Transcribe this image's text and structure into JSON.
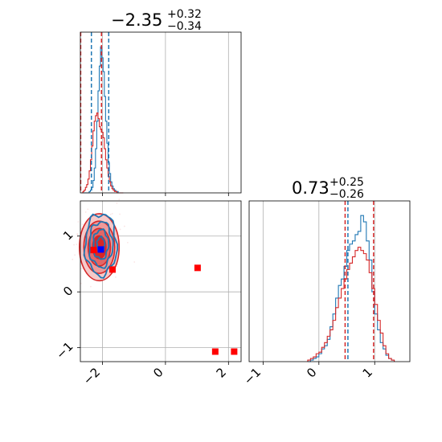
{
  "chart_data": [
    {
      "type": "histogram",
      "panel": "top-left",
      "title": {
        "main": "−2.35",
        "plus": "+0.32",
        "minus": "−0.34"
      },
      "xlim": [
        -2.7,
        2.4
      ],
      "xticks": [
        -2,
        0,
        2
      ],
      "xtick_labels": [
        "−2",
        "0",
        "2"
      ],
      "grid": true,
      "series": [
        {
          "color": "#1f77b4",
          "bin_edges": [
            -2.66,
            -2.62,
            -2.58,
            -2.54,
            -2.5,
            -2.46,
            -2.42,
            -2.38,
            -2.34,
            -2.3,
            -2.26,
            -2.22,
            -2.18,
            -2.14,
            -2.1,
            -2.06,
            -2.02,
            -1.98,
            -1.94,
            -1.9,
            -1.86,
            -1.82,
            -1.78,
            -1.74,
            -1.7,
            -1.66,
            -1.62,
            -1.58,
            -1.54,
            -1.5,
            -1.46,
            -1.42,
            -1.38,
            -1.34
          ],
          "counts": [
            0,
            0,
            0,
            0,
            0,
            0,
            1,
            2,
            4,
            9,
            18,
            32,
            52,
            74,
            92,
            106,
            98,
            88,
            70,
            52,
            36,
            22,
            14,
            8,
            5,
            3,
            2,
            1,
            1,
            0,
            0,
            0,
            0
          ]
        },
        {
          "color": "#d62728",
          "bin_edges": [
            -2.66,
            -2.62,
            -2.58,
            -2.54,
            -2.5,
            -2.46,
            -2.42,
            -2.38,
            -2.34,
            -2.3,
            -2.26,
            -2.22,
            -2.18,
            -2.14,
            -2.1,
            -2.06,
            -2.02,
            -1.98,
            -1.94,
            -1.9,
            -1.86,
            -1.82,
            -1.78,
            -1.74,
            -1.7,
            -1.66,
            -1.62,
            -1.58,
            -1.54,
            -1.5,
            -1.46,
            -1.42,
            -1.38,
            -1.34
          ],
          "counts": [
            0,
            1,
            2,
            4,
            6,
            10,
            16,
            24,
            34,
            45,
            52,
            56,
            58,
            54,
            48,
            46,
            44,
            40,
            32,
            24,
            18,
            12,
            8,
            5,
            3,
            2,
            1,
            1,
            0,
            0,
            0,
            0,
            0
          ]
        }
      ],
      "vlines": [
        {
          "x": -2.69,
          "color": "#d62728",
          "style": "dashed"
        },
        {
          "x": -2.35,
          "color": "#1f77b4",
          "style": "dashed"
        },
        {
          "x": -2.03,
          "color": "#d62728",
          "style": "dashed"
        },
        {
          "x": -1.8,
          "color": "#1f77b4",
          "style": "dashed"
        }
      ]
    },
    {
      "type": "scatter",
      "panel": "bottom-left",
      "xlim": [
        -2.7,
        2.4
      ],
      "ylim": [
        -1.25,
        1.63
      ],
      "xticks": [
        -2,
        0,
        2
      ],
      "xtick_labels": [
        "−2",
        "0",
        "2"
      ],
      "yticks": [
        -1,
        0,
        1
      ],
      "ytick_labels": [
        "−1",
        "0",
        "1"
      ],
      "grid": true,
      "contours": [
        {
          "color": "#1f77b4",
          "center": [
            -2.05,
            0.85
          ],
          "spread": [
            0.5,
            0.55
          ]
        },
        {
          "color": "#d62728",
          "center": [
            -2.1,
            0.8
          ],
          "spread": [
            0.63,
            0.6
          ]
        }
      ],
      "points": [
        {
          "x": -2.28,
          "y": 0.75,
          "color": "#ff0000"
        },
        {
          "x": -2.05,
          "y": 0.76,
          "color": "#0000ff"
        },
        {
          "x": -1.68,
          "y": 0.4,
          "color": "#ff0000"
        },
        {
          "x": 1.02,
          "y": 0.43,
          "color": "#ff0000"
        },
        {
          "x": 1.58,
          "y": -1.07,
          "color": "#ff0000"
        },
        {
          "x": 2.18,
          "y": -1.07,
          "color": "#ff0000"
        }
      ]
    },
    {
      "type": "histogram",
      "panel": "bottom-right",
      "title": {
        "main": "0.73",
        "plus": "+0.25",
        "minus": "−0.26"
      },
      "xlim": [
        -1.25,
        1.63
      ],
      "xticks": [
        -1,
        0,
        1
      ],
      "xtick_labels": [
        "−1",
        "0",
        "1"
      ],
      "grid": true,
      "series": [
        {
          "color": "#1f77b4",
          "bin_edges": [
            -0.2,
            -0.15,
            -0.1,
            -0.05,
            0.0,
            0.05,
            0.1,
            0.15,
            0.2,
            0.25,
            0.3,
            0.35,
            0.4,
            0.45,
            0.5,
            0.55,
            0.6,
            0.65,
            0.7,
            0.75,
            0.8,
            0.85,
            0.9,
            0.95,
            1.0,
            1.05,
            1.1,
            1.15,
            1.2,
            1.25,
            1.3,
            1.35
          ],
          "counts": [
            0,
            1,
            2,
            3,
            5,
            8,
            10,
            14,
            22,
            30,
            40,
            48,
            52,
            60,
            70,
            74,
            76,
            80,
            82,
            92,
            88,
            76,
            64,
            44,
            30,
            20,
            12,
            8,
            4,
            2,
            1
          ]
        },
        {
          "color": "#d62728",
          "bin_edges": [
            -0.2,
            -0.15,
            -0.1,
            -0.05,
            0.0,
            0.05,
            0.1,
            0.15,
            0.2,
            0.25,
            0.3,
            0.35,
            0.4,
            0.45,
            0.5,
            0.55,
            0.6,
            0.65,
            0.7,
            0.75,
            0.8,
            0.85,
            0.9,
            0.95,
            1.0,
            1.05,
            1.1,
            1.15,
            1.2,
            1.25,
            1.3,
            1.35
          ],
          "counts": [
            1,
            2,
            3,
            5,
            6,
            9,
            12,
            16,
            20,
            26,
            34,
            40,
            46,
            52,
            58,
            62,
            66,
            70,
            72,
            70,
            68,
            64,
            56,
            46,
            36,
            26,
            18,
            10,
            5,
            2,
            1
          ]
        }
      ],
      "vlines": [
        {
          "x": 0.47,
          "color": "#d62728",
          "style": "dashed"
        },
        {
          "x": 0.52,
          "color": "#1f77b4",
          "style": "dashed"
        },
        {
          "x": 0.98,
          "color": "#d62728",
          "style": "dashed"
        }
      ]
    }
  ]
}
